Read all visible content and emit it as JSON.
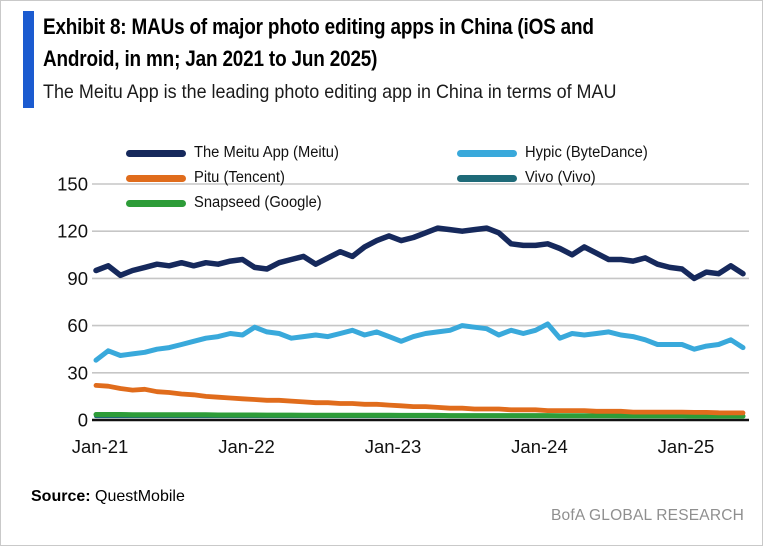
{
  "header": {
    "title_line1": "Exhibit 8: MAUs of major photo editing apps in China (iOS and",
    "title_line2": "Android, in mn; Jan 2021 to Jun 2025)",
    "subtitle": "The Meitu App is the leading photo editing app in China in terms of MAU"
  },
  "chart_data": {
    "type": "line",
    "title": "MAUs of major photo editing apps in China (iOS and Android, in mn)",
    "x_start": "Jan-2021",
    "x_end": "Jun-2025",
    "x_unit": "month",
    "x_tick_labels": [
      "Jan-21",
      "Jan-22",
      "Jan-23",
      "Jan-24",
      "Jan-25"
    ],
    "x_tick_indices": [
      0,
      12,
      24,
      36,
      48
    ],
    "y_ticks": [
      0,
      30,
      60,
      90,
      120,
      150
    ],
    "ylim": [
      0,
      150
    ],
    "grid": "horizontal",
    "legend_position": "top",
    "series": [
      {
        "name": "The Meitu App (Meitu)",
        "color": "#16295c",
        "values": [
          95,
          98,
          92,
          95,
          97,
          99,
          98,
          100,
          98,
          100,
          99,
          101,
          102,
          97,
          96,
          100,
          102,
          104,
          99,
          103,
          107,
          104,
          110,
          114,
          117,
          114,
          116,
          119,
          122,
          121,
          120,
          121,
          122,
          119,
          112,
          111,
          111,
          112,
          109,
          105,
          110,
          106,
          102,
          102,
          101,
          103,
          99,
          97,
          96,
          90,
          94,
          93,
          98,
          93
        ]
      },
      {
        "name": "Hypic (ByteDance)",
        "color": "#39a9db",
        "values": [
          38,
          44,
          41,
          42,
          43,
          45,
          46,
          48,
          50,
          52,
          53,
          55,
          54,
          59,
          56,
          55,
          52,
          53,
          54,
          53,
          55,
          57,
          54,
          56,
          53,
          50,
          53,
          55,
          56,
          57,
          60,
          59,
          58,
          54,
          57,
          55,
          57,
          61,
          52,
          55,
          54,
          55,
          56,
          54,
          53,
          51,
          48,
          48,
          48,
          45,
          47,
          48,
          51,
          46
        ]
      },
      {
        "name": "Pitu (Tencent)",
        "color": "#e06c1c",
        "values": [
          22,
          21.5,
          20,
          19,
          19.5,
          18,
          17.5,
          16.5,
          16,
          15,
          14.5,
          14,
          13.5,
          13,
          12.5,
          12.5,
          12,
          11.5,
          11,
          11,
          10.5,
          10.5,
          10,
          10,
          9.5,
          9,
          8.5,
          8.5,
          8,
          7.5,
          7.5,
          7,
          7,
          7,
          6.5,
          6.5,
          6.5,
          6,
          6,
          6,
          6,
          5.5,
          5.5,
          5.5,
          5,
          5,
          5,
          5,
          5,
          4.8,
          4.8,
          4.6,
          4.5,
          4.5
        ]
      },
      {
        "name": "Vivo (Vivo)",
        "color": "#1e6a78",
        "values": [
          2.5,
          2.5,
          2.5,
          2.5,
          2.5,
          2.5,
          2.5,
          2.5,
          2.5,
          2.5,
          2.5,
          2.5,
          2.5,
          2.5,
          2.5,
          2.5,
          2.5,
          2.5,
          2.5,
          2.5,
          2.5,
          2.5,
          2.5,
          2.5,
          2.5,
          2.5,
          2.5,
          2.5,
          2.5,
          2.5,
          2.5,
          2.5,
          2.5,
          2.5,
          2.5,
          2.5,
          2.5,
          2.5,
          2.5,
          2.5,
          2.5,
          2.5,
          2.5,
          2.5,
          2.5,
          2.5,
          2.5,
          2.5,
          2.5,
          2.5,
          2.5,
          2.5,
          2.5,
          2.5
        ]
      },
      {
        "name": "Snapseed (Google)",
        "color": "#2d9c38",
        "values": [
          3.5,
          3.5,
          3.5,
          3.4,
          3.4,
          3.4,
          3.3,
          3.3,
          3.3,
          3.3,
          3.2,
          3.2,
          3.2,
          3.2,
          3.1,
          3.1,
          3.1,
          3.0,
          3.0,
          3.0,
          3.0,
          3.0,
          3.0,
          3.0,
          3.0,
          2.9,
          2.9,
          2.9,
          2.9,
          2.8,
          2.8,
          2.8,
          2.8,
          2.8,
          2.8,
          2.8,
          2.8,
          2.8,
          2.7,
          2.7,
          2.7,
          2.7,
          2.7,
          2.6,
          2.6,
          2.6,
          2.6,
          2.6,
          2.6,
          2.5,
          2.5,
          2.5,
          2.5,
          2.4
        ]
      }
    ]
  },
  "footer": {
    "source_label": "Source:",
    "source_value": "QuestMobile",
    "brand": "BofA GLOBAL RESEARCH"
  },
  "colors": {
    "accent_bar": "#1b5bd0",
    "gridline": "#c6c6c6",
    "axis": "#111111",
    "tick_text": "#111111",
    "brand_text": "#8f8f8f"
  }
}
